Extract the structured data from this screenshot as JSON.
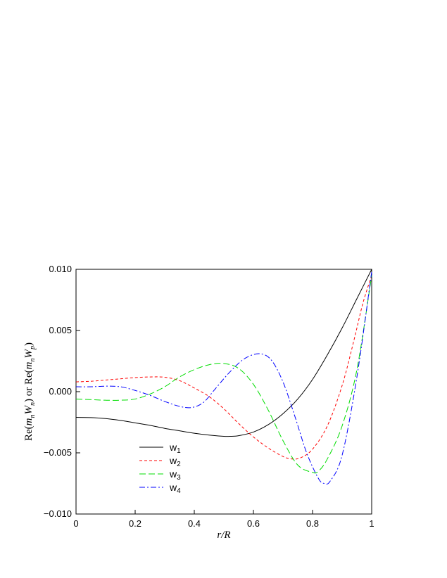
{
  "chart_data": {
    "type": "line",
    "xlabel": "r/R",
    "ylabel": {
      "parts": [
        "Re(",
        "m",
        "n",
        "W",
        "n",
        ") or Re(",
        "m",
        "n",
        "W",
        "p",
        ")"
      ]
    },
    "xlim": [
      0,
      1
    ],
    "ylim": [
      -0.01,
      0.01
    ],
    "xticks": [
      0,
      0.2,
      0.4,
      0.6,
      0.8,
      1
    ],
    "xtick_labels": [
      "0",
      "0.2",
      "0.4",
      "0.6",
      "0.8",
      "1"
    ],
    "yticks": [
      -0.01,
      -0.005,
      0.0,
      0.005,
      0.01
    ],
    "ytick_labels": [
      "−0.010",
      "−0.005",
      "0.000",
      "0.005",
      "0.010"
    ],
    "grid": false,
    "legend_position": "lower-left",
    "series": [
      {
        "name": "w",
        "subscript": "1",
        "color": "#000000",
        "dash": "",
        "x": [
          0,
          0.05,
          0.1,
          0.15,
          0.2,
          0.25,
          0.3,
          0.35,
          0.4,
          0.45,
          0.5,
          0.52,
          0.55,
          0.6,
          0.65,
          0.7,
          0.75,
          0.8,
          0.85,
          0.9,
          0.95,
          1.0
        ],
        "y": [
          -0.0021,
          -0.00212,
          -0.0022,
          -0.00235,
          -0.00255,
          -0.00275,
          -0.003,
          -0.0032,
          -0.0034,
          -0.00355,
          -0.00365,
          -0.00365,
          -0.0036,
          -0.0033,
          -0.0027,
          -0.0018,
          -0.0006,
          0.001,
          0.003,
          0.0052,
          0.0076,
          0.01
        ]
      },
      {
        "name": "w",
        "subscript": "2",
        "color": "#ff0000",
        "dash": "4,3",
        "x": [
          0,
          0.05,
          0.1,
          0.15,
          0.2,
          0.25,
          0.3,
          0.35,
          0.4,
          0.45,
          0.5,
          0.55,
          0.6,
          0.65,
          0.7,
          0.73,
          0.76,
          0.8,
          0.85,
          0.9,
          0.94,
          0.97,
          1.0
        ],
        "y": [
          0.0008,
          0.00085,
          0.00095,
          0.00105,
          0.00115,
          0.0012,
          0.00118,
          0.0009,
          0.0003,
          -0.0004,
          -0.0014,
          -0.0026,
          -0.0037,
          -0.0046,
          -0.0053,
          -0.0055,
          -0.0054,
          -0.0047,
          -0.0028,
          0.0005,
          0.0042,
          0.0072,
          0.0095
        ]
      },
      {
        "name": "w",
        "subscript": "3",
        "color": "#00dd00",
        "dash": "9,4",
        "x": [
          0,
          0.05,
          0.1,
          0.15,
          0.2,
          0.25,
          0.3,
          0.35,
          0.4,
          0.45,
          0.5,
          0.55,
          0.6,
          0.65,
          0.7,
          0.75,
          0.8,
          0.82,
          0.85,
          0.9,
          0.95,
          1.0
        ],
        "y": [
          -0.0006,
          -0.00065,
          -0.0007,
          -0.0007,
          -0.0006,
          -0.0002,
          0.0004,
          0.0012,
          0.0018,
          0.0022,
          0.0023,
          0.0019,
          0.0006,
          -0.0015,
          -0.004,
          -0.006,
          -0.0066,
          -0.0065,
          -0.0055,
          -0.0028,
          0.0018,
          0.0095
        ]
      },
      {
        "name": "w",
        "subscript": "4",
        "color": "#0000ff",
        "dash": "8,3,2,3",
        "x": [
          0,
          0.05,
          0.1,
          0.15,
          0.2,
          0.25,
          0.3,
          0.35,
          0.39,
          0.43,
          0.47,
          0.52,
          0.57,
          0.62,
          0.66,
          0.7,
          0.74,
          0.78,
          0.82,
          0.84,
          0.86,
          0.9,
          0.95,
          1.0
        ],
        "y": [
          0.0004,
          0.0004,
          0.00045,
          0.0004,
          0.0001,
          -0.0003,
          -0.0008,
          -0.0012,
          -0.0013,
          -0.0009,
          0.0002,
          0.0016,
          0.0027,
          0.0031,
          0.0026,
          0.0008,
          -0.002,
          -0.005,
          -0.0071,
          -0.0075,
          -0.0073,
          -0.0052,
          0.0012,
          0.0098
        ]
      }
    ]
  }
}
